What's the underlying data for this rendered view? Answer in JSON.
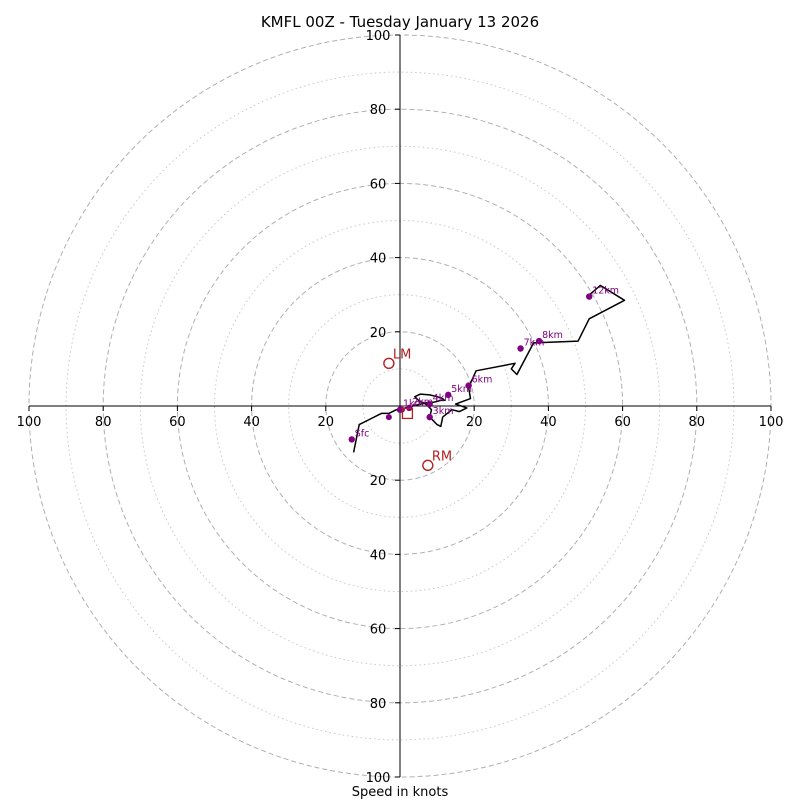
{
  "chart_data": {
    "type": "hodograph",
    "title": "KMFL 00Z - Tuesday January 13 2026",
    "xlabel": "Speed in knots",
    "speed_unit": "knots",
    "max_speed": 100,
    "ring_major": [
      20,
      40,
      60,
      80,
      100
    ],
    "ring_minor": [
      10,
      30,
      50,
      70,
      90
    ],
    "ticks": {
      "x_left": [
        "100",
        "80",
        "60",
        "40",
        "20"
      ],
      "x_right": [
        "20",
        "40",
        "60",
        "80",
        "100"
      ],
      "y_top": [
        "100",
        "80",
        "60",
        "40",
        "20"
      ],
      "y_bottom": [
        "20",
        "40",
        "60",
        "80",
        "100"
      ],
      "values_left": [
        100,
        80,
        60,
        40,
        20
      ],
      "values_right": [
        20,
        40,
        60,
        80,
        100
      ]
    },
    "hodograph_trace": {
      "u": [
        -12.5,
        -11,
        -8,
        -5,
        -3,
        -2,
        -1,
        0,
        1.5,
        3.5,
        5.5,
        7.5,
        9,
        11,
        12,
        11.5,
        10,
        8,
        5.5,
        4,
        5,
        7,
        8.5,
        8,
        10,
        11,
        11.5,
        14,
        16,
        18,
        15,
        19,
        18.5,
        20.5,
        31,
        30,
        31.5,
        36,
        48,
        51,
        60.5,
        54,
        50.5
      ],
      "v": [
        -12.5,
        -5,
        -3.5,
        -2,
        -2,
        -1.5,
        -1,
        -1,
        -0.5,
        0,
        0.5,
        1,
        1,
        1.5,
        1.5,
        2,
        2.5,
        3,
        3.2,
        2.5,
        1.5,
        0.5,
        -1,
        -3,
        -5,
        -5.5,
        -3,
        -1,
        -1.5,
        -0.5,
        0.5,
        2,
        5,
        9.5,
        11.5,
        10,
        8.5,
        17,
        17.5,
        23.5,
        28.5,
        32.5,
        29.5
      ]
    },
    "height_markers": [
      {
        "label": "Sfc",
        "u": -13,
        "v": -9
      },
      {
        "label": "1km",
        "u": 0,
        "v": -1
      },
      {
        "label": "2km",
        "u": 2.5,
        "v": -0.5
      },
      {
        "label": "3km",
        "u": 8,
        "v": -3
      },
      {
        "label": "4km",
        "u": 8,
        "v": 0.5
      },
      {
        "label": "5km",
        "u": 13,
        "v": 3
      },
      {
        "label": "6km",
        "u": 18.5,
        "v": 5.5
      },
      {
        "label": "7km",
        "u": 32.5,
        "v": 15.5
      },
      {
        "label": "8km",
        "u": 37.5,
        "v": 17.5
      },
      {
        "label": "12km",
        "u": 51,
        "v": 29.5
      }
    ],
    "extra_points": [
      {
        "u": -3,
        "v": -3
      },
      {
        "u": 0.5,
        "v": -1
      }
    ],
    "storm_motion": {
      "LM": {
        "label": "LM",
        "u": -3,
        "v": 11.5
      },
      "RM": {
        "label": "RM",
        "u": 7.5,
        "v": -16
      },
      "mean_wind": {
        "u": 2,
        "v": -2
      }
    },
    "colors": {
      "trace": "#000000",
      "markers": "#800080",
      "storm_motion": "#b22222",
      "grid": "#b0b0b0"
    }
  }
}
